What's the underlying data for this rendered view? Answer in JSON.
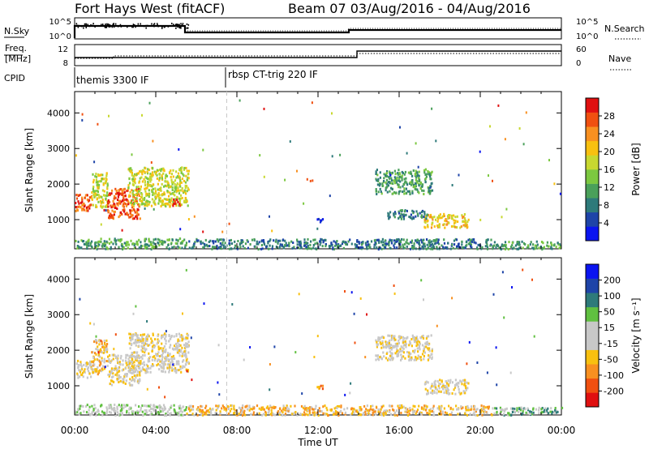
{
  "title": {
    "station": "Fort Hays West (fitACF)",
    "beam_date": "Beam 07  03/Aug/2016 - 04/Aug/2016"
  },
  "header": {
    "nsky_label": "N.Sky",
    "nsearch_label": "N.Search",
    "freq_label": "Freq.",
    "freq_unit": "[MHz]",
    "nave_label": "Nave",
    "cpid_label": "CPID",
    "nsky_ticks": [
      "10^5",
      "10^0"
    ],
    "nsearch_ticks": [
      "10^5",
      "10^0"
    ],
    "freq_ticks": [
      "12",
      "8"
    ],
    "nave_ticks": [
      "60",
      "0"
    ],
    "cpid_entries": [
      {
        "label": "themis 3300 IF",
        "start_hour": 0
      },
      {
        "label": "rbsp CT-trig 220 IF",
        "start_hour": 7.5
      }
    ]
  },
  "chart_data": [
    {
      "type": "heatmap",
      "name": "power",
      "ylabel": "Slant Range [km]",
      "ylim": [
        180,
        4600
      ],
      "yticks": [
        "1000",
        "2000",
        "3000",
        "4000"
      ],
      "colorbar_label": "Power [dB]",
      "colorbar_ticks": [
        "4",
        "8",
        "12",
        "16",
        "20",
        "24",
        "28"
      ],
      "colors": [
        "#0a14f0",
        "#1e44a8",
        "#2e7a7a",
        "#4aa05a",
        "#7cc840",
        "#c8d830",
        "#f8c010",
        "#f89020",
        "#f05010",
        "#e01010"
      ],
      "regions": [
        {
          "hours": [
            0.0,
            0.8
          ],
          "range_km": [
            1250,
            1750
          ],
          "level": 8
        },
        {
          "hours": [
            0.8,
            1.6
          ],
          "range_km": [
            1350,
            2350
          ],
          "level": 5
        },
        {
          "hours": [
            1.6,
            3.2
          ],
          "range_km": [
            1050,
            1900
          ],
          "level": 8
        },
        {
          "hours": [
            2.6,
            5.6
          ],
          "range_km": [
            1400,
            2500
          ],
          "level": 5
        },
        {
          "hours": [
            4.8,
            5.2
          ],
          "range_km": [
            1400,
            1600
          ],
          "level": 9
        },
        {
          "hours": [
            0.0,
            5.5
          ],
          "range_km": [
            200,
            500
          ],
          "level": 3
        },
        {
          "hours": [
            5.5,
            20.6
          ],
          "range_km": [
            200,
            480
          ],
          "level": 2
        },
        {
          "hours": [
            20.6,
            24.0
          ],
          "range_km": [
            200,
            420
          ],
          "level": 3
        },
        {
          "hours": [
            14.8,
            17.6
          ],
          "range_km": [
            1750,
            2450
          ],
          "level": 3
        },
        {
          "hours": [
            17.2,
            19.4
          ],
          "range_km": [
            800,
            1200
          ],
          "level": 6
        },
        {
          "hours": [
            15.4,
            17.4
          ],
          "range_km": [
            1050,
            1300
          ],
          "level": 2
        },
        {
          "hours": [
            11.9,
            12.2
          ],
          "range_km": [
            900,
            1050
          ],
          "level": 1
        }
      ]
    },
    {
      "type": "heatmap",
      "name": "velocity",
      "ylabel": "Slant Range [km]",
      "ylim": [
        180,
        4600
      ],
      "yticks": [
        "1000",
        "2000",
        "3000",
        "4000"
      ],
      "colorbar_label": "Velocity [m s⁻¹]",
      "colorbar_ticks": [
        "-200",
        "-100",
        "-50",
        "-15",
        "15",
        "50",
        "100",
        "200"
      ],
      "colors": [
        "#e01010",
        "#f05010",
        "#f89020",
        "#f8c010",
        "#c8c8c8",
        "#c8c8c8",
        "#60c040",
        "#2e7a7a",
        "#1e44a8",
        "#0a14f0"
      ],
      "regions": [
        {
          "hours": [
            0.0,
            0.8
          ],
          "range_km": [
            1250,
            1750
          ],
          "level": 4
        },
        {
          "hours": [
            0.8,
            1.6
          ],
          "range_km": [
            1350,
            2350
          ],
          "level": 3
        },
        {
          "hours": [
            1.6,
            3.2
          ],
          "range_km": [
            1050,
            1900
          ],
          "level": 4
        },
        {
          "hours": [
            2.6,
            5.6
          ],
          "range_km": [
            1400,
            2500
          ],
          "level": 4
        },
        {
          "hours": [
            0.0,
            5.5
          ],
          "range_km": [
            200,
            500
          ],
          "level": 5
        },
        {
          "hours": [
            5.5,
            20.6
          ],
          "range_km": [
            200,
            480
          ],
          "level": 3
        },
        {
          "hours": [
            20.6,
            24.0
          ],
          "range_km": [
            200,
            420
          ],
          "level": 6
        },
        {
          "hours": [
            14.8,
            17.6
          ],
          "range_km": [
            1750,
            2450
          ],
          "level": 4
        },
        {
          "hours": [
            17.2,
            19.4
          ],
          "range_km": [
            800,
            1200
          ],
          "level": 4
        },
        {
          "hours": [
            11.9,
            12.2
          ],
          "range_km": [
            900,
            1050
          ],
          "level": 2
        }
      ]
    }
  ],
  "xaxis": {
    "label": "Time UT",
    "ticks": [
      "00:00",
      "04:00",
      "08:00",
      "12:00",
      "16:00",
      "20:00",
      "00:00"
    ],
    "xlim_hours": [
      0,
      24
    ]
  }
}
